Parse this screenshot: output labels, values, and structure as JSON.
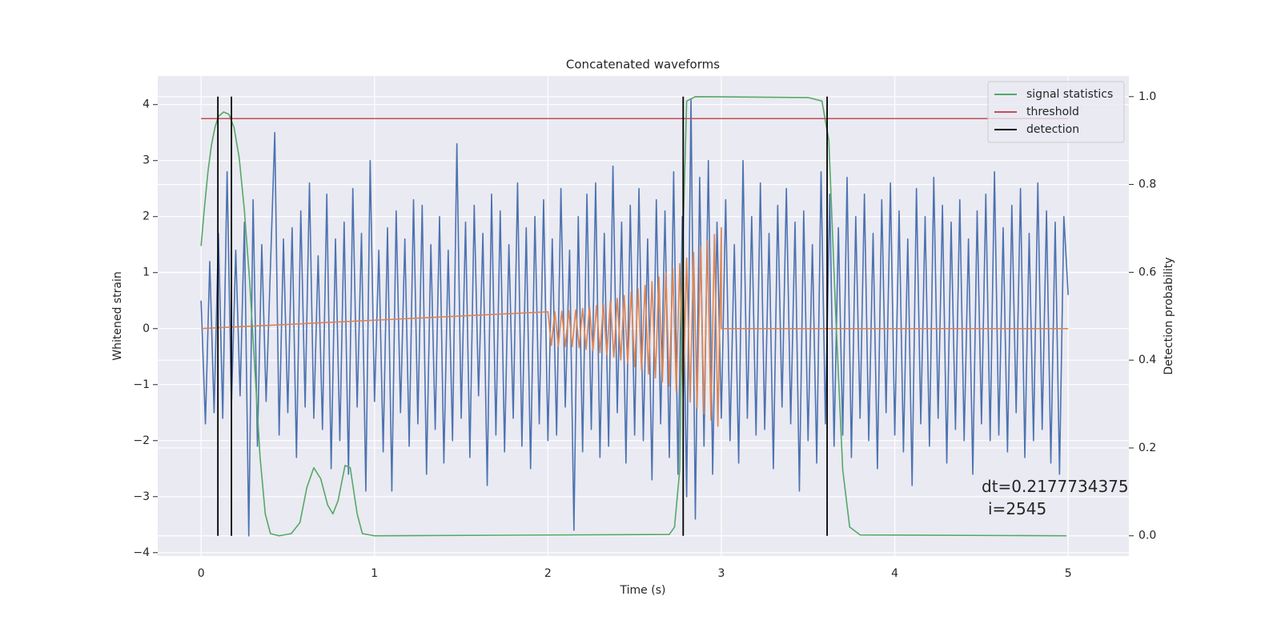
{
  "chart_data": {
    "type": "line",
    "title": "Concatenated waveforms",
    "xlabel": "Time (s)",
    "ylabel": "Whitened strain",
    "y2label": "Detection probability",
    "xlim": [
      -0.25,
      5.35
    ],
    "ylim": [
      -4.06,
      4.51
    ],
    "y2lim": [
      -0.046,
      1.047
    ],
    "xticks": [
      0,
      1,
      2,
      3,
      4,
      5
    ],
    "yticks": [
      {
        "value": -4,
        "label": "−4"
      },
      {
        "value": -3,
        "label": "−3"
      },
      {
        "value": -2,
        "label": "−2"
      },
      {
        "value": -1,
        "label": "−1"
      },
      0,
      1,
      2,
      3,
      4
    ],
    "y2ticks": [
      {
        "value": 0,
        "label": "0.0"
      },
      0.2,
      0.4,
      0.6,
      0.8,
      {
        "value": 1,
        "label": "1.0"
      }
    ],
    "grid": true,
    "legend": "upper right",
    "annotation": [
      "dt=0.2177734375",
      "i=2545"
    ],
    "series": [
      {
        "color": "#4c72b0",
        "x": [
          0,
          0.025,
          0.05,
          0.075,
          0.1,
          0.125,
          0.15,
          0.175,
          0.2,
          0.225,
          0.25,
          0.275,
          0.3,
          0.325,
          0.35,
          0.375,
          0.4,
          0.425,
          0.45,
          0.475,
          0.5,
          0.525,
          0.55,
          0.575,
          0.6,
          0.625,
          0.65,
          0.675,
          0.7,
          0.725,
          0.75,
          0.775,
          0.8,
          0.825,
          0.85,
          0.875,
          0.9,
          0.925,
          0.95,
          0.975,
          1,
          1.025,
          1.05,
          1.075,
          1.1,
          1.125,
          1.15,
          1.175,
          1.2,
          1.225,
          1.25,
          1.275,
          1.3,
          1.325,
          1.35,
          1.375,
          1.4,
          1.425,
          1.45,
          1.475,
          1.5,
          1.525,
          1.55,
          1.575,
          1.6,
          1.625,
          1.65,
          1.675,
          1.7,
          1.725,
          1.75,
          1.775,
          1.8,
          1.825,
          1.85,
          1.875,
          1.9,
          1.925,
          1.95,
          1.975,
          2,
          2.025,
          2.05,
          2.075,
          2.1,
          2.125,
          2.15,
          2.175,
          2.2,
          2.225,
          2.25,
          2.275,
          2.3,
          2.325,
          2.35,
          2.375,
          2.4,
          2.425,
          2.45,
          2.475,
          2.5,
          2.525,
          2.55,
          2.575,
          2.6,
          2.625,
          2.65,
          2.675,
          2.7,
          2.725,
          2.75,
          2.775,
          2.8,
          2.825,
          2.85,
          2.875,
          2.9,
          2.925,
          2.95,
          2.975,
          3,
          3.025,
          3.05,
          3.075,
          3.1,
          3.125,
          3.15,
          3.175,
          3.2,
          3.225,
          3.25,
          3.275,
          3.3,
          3.325,
          3.35,
          3.375,
          3.4,
          3.425,
          3.45,
          3.475,
          3.5,
          3.525,
          3.55,
          3.575,
          3.6,
          3.625,
          3.65,
          3.675,
          3.7,
          3.725,
          3.75,
          3.775,
          3.8,
          3.825,
          3.85,
          3.875,
          3.9,
          3.925,
          3.95,
          3.975,
          4,
          4.025,
          4.05,
          4.075,
          4.1,
          4.125,
          4.15,
          4.175,
          4.2,
          4.225,
          4.25,
          4.275,
          4.3,
          4.325,
          4.35,
          4.375,
          4.4,
          4.425,
          4.45,
          4.475,
          4.5,
          4.525,
          4.55,
          4.575,
          4.6,
          4.625,
          4.65,
          4.675,
          4.7,
          4.725,
          4.75,
          4.775,
          4.8,
          4.825,
          4.85,
          4.875,
          4.9,
          4.925,
          4.95,
          4.975,
          5
        ],
        "values": [
          0.5,
          -1.7,
          1.2,
          -1.5,
          1.7,
          -1.6,
          2.8,
          -1.4,
          1.4,
          -1.2,
          1.9,
          -3.7,
          2.3,
          -2.1,
          1.5,
          -1.3,
          1.1,
          3.5,
          -1.9,
          1.6,
          -1.5,
          1.8,
          -2.3,
          2.1,
          -1.4,
          2.6,
          -1.6,
          1.3,
          -1.8,
          2.4,
          -2.5,
          1.6,
          -2.0,
          1.9,
          -2.6,
          2.5,
          -1.4,
          1.7,
          -2.9,
          3.0,
          -1.3,
          1.4,
          -2.2,
          1.8,
          -2.9,
          2.1,
          -1.5,
          1.6,
          -2.1,
          2.3,
          -1.7,
          2.2,
          -2.6,
          1.5,
          -1.8,
          2.0,
          -2.4,
          1.4,
          -2.0,
          3.3,
          -1.6,
          1.9,
          -2.3,
          2.2,
          -1.2,
          1.7,
          -2.8,
          2.4,
          -1.9,
          2.1,
          -2.2,
          1.5,
          -1.6,
          2.6,
          -2.1,
          1.8,
          -2.5,
          2.0,
          -1.7,
          2.3,
          -2.0,
          1.6,
          -1.9,
          2.5,
          -1.4,
          1.4,
          -3.6,
          2.0,
          -2.2,
          2.4,
          -1.8,
          2.6,
          -2.3,
          1.7,
          -2.1,
          2.9,
          -1.5,
          1.9,
          -2.4,
          2.2,
          -1.9,
          2.5,
          -2.0,
          1.6,
          -2.7,
          2.3,
          -1.7,
          2.1,
          -2.3,
          2.8,
          -2.6,
          2.0,
          -3.0,
          4.1,
          -3.4,
          2.7,
          -2.1,
          3.0,
          -2.6,
          1.9,
          -1.6,
          2.3,
          -2.0,
          1.5,
          -2.4,
          3.0,
          -1.6,
          2.0,
          -1.9,
          2.6,
          -1.8,
          1.7,
          -2.5,
          2.2,
          -1.4,
          2.5,
          -1.7,
          1.9,
          -2.9,
          2.1,
          -2.0,
          1.5,
          -2.4,
          2.8,
          -1.7,
          2.4,
          -2.1,
          1.8,
          -1.9,
          2.7,
          -2.3,
          2.0,
          -1.6,
          2.4,
          -2.0,
          1.7,
          -2.5,
          2.3,
          -1.5,
          2.6,
          -1.9,
          2.1,
          -2.2,
          1.6,
          -2.8,
          2.5,
          -1.7,
          2.0,
          -2.1,
          2.7,
          -1.6,
          2.2,
          -2.4,
          1.9,
          -1.8,
          2.3,
          -2.0,
          1.6,
          -2.6,
          2.1,
          -1.7,
          2.4,
          -2.0,
          2.8,
          -1.9,
          1.8,
          -2.2,
          2.2,
          -1.5,
          2.5,
          -2.3,
          1.7,
          -2.0,
          2.6,
          -1.8,
          2.1,
          -2.4,
          1.9,
          -2.6,
          2.0,
          0.6
        ]
      },
      {
        "color": "#dd8452",
        "x": [
          0,
          2,
          2.02,
          2.04,
          2.06,
          2.08,
          2.1,
          2.12,
          2.14,
          2.16,
          2.18,
          2.2,
          2.22,
          2.24,
          2.26,
          2.28,
          2.3,
          2.32,
          2.34,
          2.36,
          2.38,
          2.4,
          2.42,
          2.44,
          2.46,
          2.48,
          2.5,
          2.52,
          2.54,
          2.56,
          2.58,
          2.6,
          2.62,
          2.64,
          2.66,
          2.68,
          2.7,
          2.72,
          2.74,
          2.76,
          2.78,
          2.8,
          2.82,
          2.84,
          2.86,
          2.88,
          2.9,
          2.92,
          2.94,
          2.96,
          2.98,
          3,
          3,
          5
        ],
        "values": [
          0,
          0.3,
          -0.3,
          0.3,
          -0.31,
          0.31,
          -0.32,
          0.32,
          -0.32,
          0.33,
          -0.34,
          0.36,
          -0.37,
          0.38,
          -0.39,
          0.41,
          -0.43,
          0.45,
          -0.47,
          0.49,
          -0.51,
          0.54,
          -0.56,
          0.59,
          -0.62,
          0.65,
          -0.68,
          0.71,
          -0.74,
          0.77,
          -0.81,
          0.84,
          -0.88,
          0.92,
          -0.95,
          0.99,
          -1.03,
          1.07,
          -1.12,
          1.16,
          -1.21,
          1.26,
          -1.31,
          1.36,
          -1.41,
          1.46,
          -1.52,
          1.57,
          -1.63,
          1.68,
          -1.74,
          1.8,
          0,
          0
        ]
      },
      {
        "name": "signal statistics",
        "color": "#55a868",
        "axis": "y2",
        "x": [
          0,
          0.02,
          0.04,
          0.06,
          0.08,
          0.1,
          0.13,
          0.16,
          0.19,
          0.22,
          0.25,
          0.28,
          0.31,
          0.34,
          0.37,
          0.4,
          0.45,
          0.52,
          0.57,
          0.61,
          0.65,
          0.69,
          0.73,
          0.76,
          0.79,
          0.83,
          0.86,
          0.9,
          0.93,
          1,
          2.7,
          2.73,
          2.76,
          2.78,
          2.8,
          2.85,
          3.5,
          3.58,
          3.62,
          3.66,
          3.7,
          3.74,
          3.8,
          4.99
        ],
        "values": [
          0.66,
          0.75,
          0.83,
          0.89,
          0.93,
          0.955,
          0.965,
          0.96,
          0.93,
          0.86,
          0.74,
          0.58,
          0.38,
          0.18,
          0.05,
          0.005,
          0,
          0.005,
          0.03,
          0.11,
          0.155,
          0.13,
          0.07,
          0.05,
          0.08,
          0.16,
          0.155,
          0.05,
          0.005,
          0,
          0.003,
          0.02,
          0.15,
          0.7,
          0.99,
          1,
          0.998,
          0.99,
          0.9,
          0.5,
          0.15,
          0.02,
          0.002,
          0
        ]
      },
      {
        "name": "threshold",
        "color": "#c44e52",
        "axis": "y2",
        "x": [
          0,
          5
        ],
        "values": [
          0.95,
          0.95
        ]
      },
      {
        "name": "detection",
        "color": "#000000",
        "axis": "y2",
        "x": [
          0.097,
          0.175,
          2.78,
          3.61
        ],
        "ymin": 0,
        "ymax": 1
      }
    ]
  }
}
